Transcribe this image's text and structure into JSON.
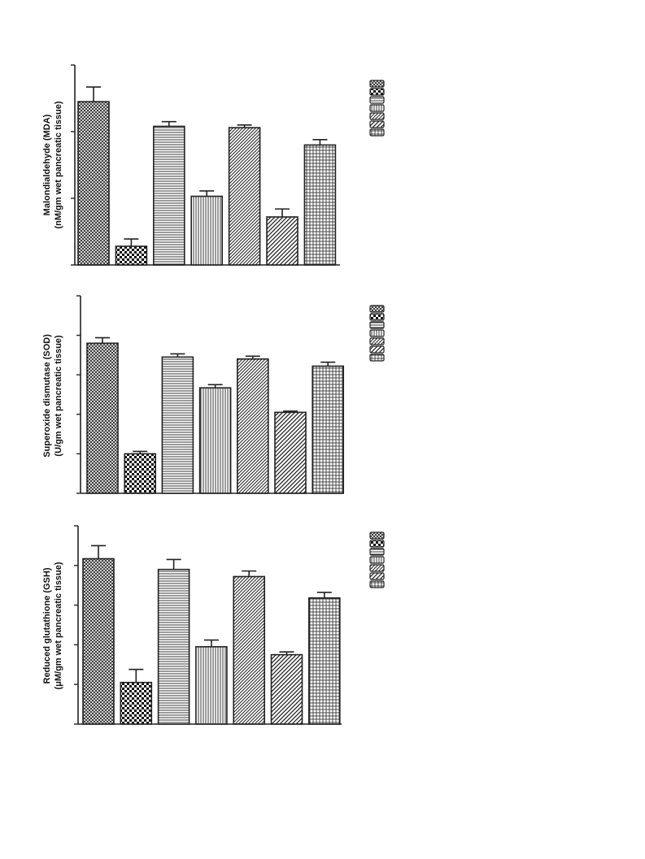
{
  "figure": {
    "panels": [
      {
        "ylabel_line1": "Malondialdehyde (MDA)",
        "ylabel_line2": "(nM/gm wet pancreatic tissue)"
      },
      {
        "ylabel_line1": "Superoxide dismutase (SOD)",
        "ylabel_line2": "(U/gm wet pancreatic tissue)"
      },
      {
        "ylabel_line1": "Reduced glutathione (GSH)",
        "ylabel_line2": "(μM/gm wet pancreatic tissue)"
      }
    ]
  },
  "chart_data": [
    {
      "type": "bar",
      "title": "",
      "xlabel": "",
      "ylabel": "Malondialdehyde (MDA) (nM/gm wet pancreatic tissue)",
      "ylim": [
        0,
        3
      ],
      "y_ticks": [
        0,
        1,
        2,
        3
      ],
      "tick_labels_shown": false,
      "grid": false,
      "legend_position": "right",
      "legend_entries_count": 7,
      "values": [
        2.45,
        0.28,
        2.08,
        1.03,
        2.06,
        0.72,
        1.8
      ],
      "errors": [
        0.22,
        0.11,
        0.07,
        0.08,
        0.04,
        0.12,
        0.08
      ],
      "patterns": [
        "crosshatch-dense",
        "checkerboard",
        "horizontal-lines",
        "vertical-lines",
        "diagonal-lines",
        "diagonal-lines-wide",
        "grid"
      ]
    },
    {
      "type": "bar",
      "title": "",
      "xlabel": "",
      "ylabel": "Superoxide dismutase (SOD) (U/gm wet pancreatic tissue)",
      "ylim": [
        0,
        5
      ],
      "y_ticks": [
        0,
        1,
        2,
        3,
        4,
        5
      ],
      "tick_labels_shown": false,
      "grid": false,
      "legend_position": "right",
      "legend_entries_count": 7,
      "values": [
        3.8,
        1.0,
        3.45,
        2.67,
        3.4,
        2.05,
        3.22
      ],
      "errors": [
        0.14,
        0.06,
        0.08,
        0.08,
        0.07,
        0.03,
        0.1
      ],
      "patterns": [
        "crosshatch-dense",
        "checkerboard",
        "horizontal-lines",
        "vertical-lines",
        "diagonal-lines",
        "diagonal-lines-wide",
        "grid"
      ]
    },
    {
      "type": "bar",
      "title": "",
      "xlabel": "",
      "ylabel": "Reduced glutathione (GSH) (μM/gm wet pancreatic tissue)",
      "ylim": [
        0,
        5
      ],
      "y_ticks": [
        0,
        1,
        2,
        3,
        4,
        5
      ],
      "tick_labels_shown": false,
      "grid": false,
      "legend_position": "right",
      "legend_entries_count": 7,
      "values": [
        4.17,
        1.05,
        3.9,
        1.95,
        3.72,
        1.75,
        3.18
      ],
      "errors": [
        0.33,
        0.33,
        0.25,
        0.17,
        0.14,
        0.07,
        0.14
      ],
      "patterns": [
        "crosshatch-dense",
        "checkerboard",
        "horizontal-lines",
        "vertical-lines",
        "diagonal-lines",
        "diagonal-lines-wide",
        "grid"
      ]
    }
  ]
}
